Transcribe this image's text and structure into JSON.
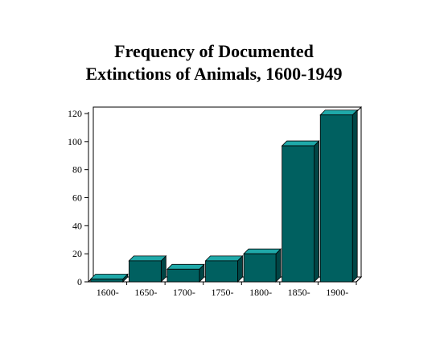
{
  "chart_data": {
    "type": "bar",
    "title_lines": [
      "Frequency of Documented",
      "Extinctions of Animals, 1600-1949"
    ],
    "categories": [
      "1600-",
      "1650-",
      "1700-",
      "1750-",
      "1800-",
      "1850-",
      "1900-"
    ],
    "values": [
      2,
      15,
      9,
      15,
      20,
      97,
      119
    ],
    "xlabel": "",
    "ylabel": "",
    "ylim": [
      0,
      120
    ],
    "yticks": [
      "0",
      "20",
      "40",
      "60",
      "80",
      "100",
      "120"
    ],
    "grid": false,
    "legend": "none",
    "bar_style": "3d",
    "colors": {
      "bar_front": "#006060",
      "bar_top": "#1fa9a9",
      "bar_side": "#004545",
      "axis": "#000000",
      "wall": "#ffffff"
    }
  }
}
